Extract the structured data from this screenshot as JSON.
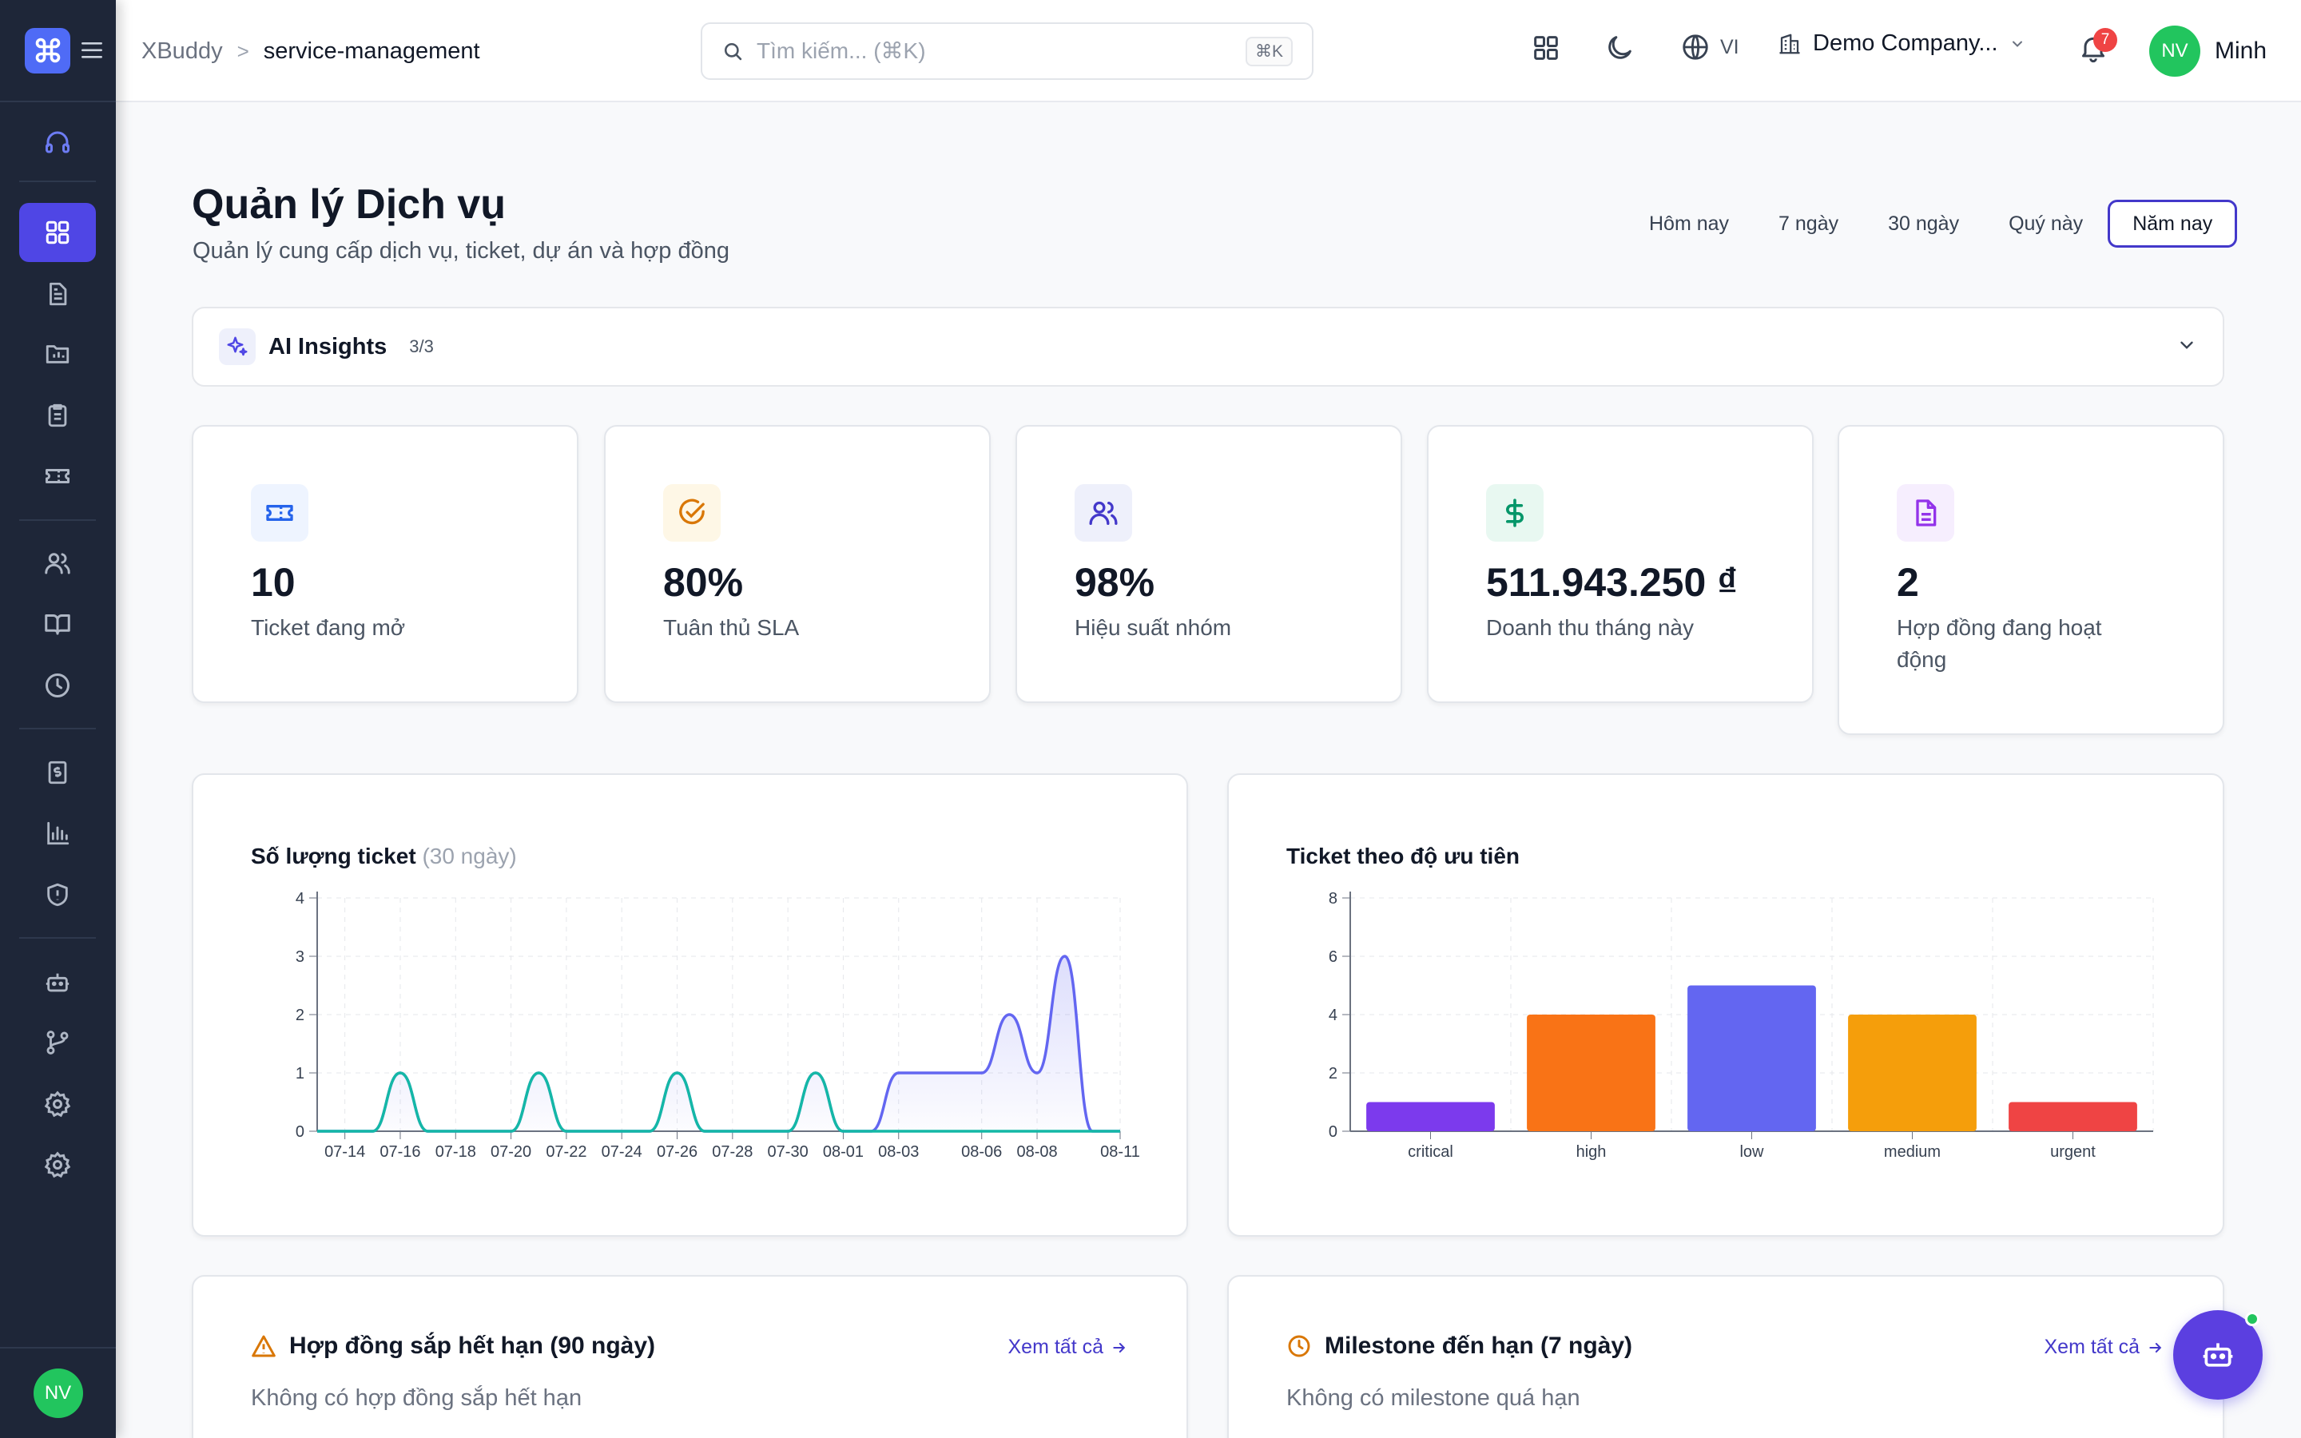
{
  "header": {
    "breadcrumb": {
      "root": "XBuddy",
      "separator": ">",
      "current": "service-management"
    },
    "search": {
      "placeholder": "Tìm kiếm... (⌘K)",
      "shortcut": "⌘K"
    },
    "language": "VI",
    "company": "Demo Company...",
    "notifications": {
      "count": "7"
    },
    "user": {
      "initials": "NV",
      "name": "Minh"
    }
  },
  "sidebar": {
    "items": [
      {
        "icon": "headset-icon",
        "active": false
      },
      {
        "icon": "dashboard-icon",
        "active": true
      },
      {
        "icon": "document-icon",
        "active": false
      },
      {
        "icon": "folder-icon",
        "active": false
      },
      {
        "icon": "clipboard-icon",
        "active": false
      },
      {
        "icon": "ticket-icon",
        "active": false
      },
      {
        "icon": "users-icon",
        "active": false
      },
      {
        "icon": "book-icon",
        "active": false
      },
      {
        "icon": "clock-icon",
        "active": false
      },
      {
        "icon": "invoice-icon",
        "active": false
      },
      {
        "icon": "bar-chart-icon",
        "active": false
      },
      {
        "icon": "shield-icon",
        "active": false
      },
      {
        "icon": "bot-icon",
        "active": false
      },
      {
        "icon": "git-branch-icon",
        "active": false
      },
      {
        "icon": "settings-icon",
        "active": false
      },
      {
        "icon": "settings-icon",
        "active": false
      }
    ],
    "user_initials": "NV"
  },
  "page": {
    "title": "Quản lý Dịch vụ",
    "subtitle": "Quản lý cung cấp dịch vụ, ticket, dự án và hợp đồng",
    "periods": [
      "Hôm nay",
      "7 ngày",
      "30 ngày",
      "Quý này",
      "Năm nay"
    ],
    "active_period": "Năm nay"
  },
  "insights": {
    "label": "AI Insights",
    "count": "3/3"
  },
  "stats": [
    {
      "value": "10",
      "label": "Ticket đang mở",
      "icon": "ticket-icon",
      "color": "#2563eb",
      "bg": "#eef4ff"
    },
    {
      "value": "80%",
      "label": "Tuân thủ SLA",
      "icon": "check-circle-icon",
      "color": "#d97706",
      "bg": "#fef7e6"
    },
    {
      "value": "98%",
      "label": "Hiệu suất nhóm",
      "icon": "users-icon",
      "color": "#4338ca",
      "bg": "#eef0fb"
    },
    {
      "value": "511.943.250 ₫",
      "label": "Doanh thu tháng này",
      "icon": "dollar-icon",
      "color": "#059669",
      "bg": "#e8f8f1"
    },
    {
      "value": "2",
      "label": "Hợp đồng đang hoạt động",
      "icon": "document-icon",
      "color": "#9333ea",
      "bg": "#f6eefe"
    }
  ],
  "ticket_chart": {
    "title": "Số lượng ticket",
    "title_suffix": "(30 ngày)"
  },
  "priority_chart": {
    "title": "Ticket theo độ ưu tiên"
  },
  "chart_data": [
    {
      "type": "area",
      "title": "Số lượng ticket (30 ngày)",
      "x": [
        "07-13",
        "07-14",
        "07-15",
        "07-16",
        "07-17",
        "07-18",
        "07-19",
        "07-20",
        "07-21",
        "07-22",
        "07-23",
        "07-24",
        "07-25",
        "07-26",
        "07-27",
        "07-28",
        "07-29",
        "07-30",
        "07-31",
        "08-01",
        "08-02",
        "08-03",
        "08-04",
        "08-05",
        "08-06",
        "08-07",
        "08-08",
        "08-09",
        "08-10",
        "08-11"
      ],
      "tick_labels": [
        "07-14",
        "07-16",
        "07-18",
        "07-20",
        "07-22",
        "07-24",
        "07-26",
        "07-28",
        "07-30",
        "08-01",
        "08-03",
        "08-06",
        "08-08",
        "08-11"
      ],
      "series": [
        {
          "values": [
            0,
            0,
            0,
            1,
            0,
            0,
            0,
            0,
            1,
            0,
            0,
            0,
            0,
            1,
            0,
            0,
            0,
            0,
            1,
            0,
            0,
            1,
            1,
            1,
            1,
            2,
            1,
            3,
            0,
            0
          ],
          "color": "#6366f1"
        },
        {
          "values": [
            0,
            0,
            0,
            1,
            0,
            0,
            0,
            0,
            1,
            0,
            0,
            0,
            0,
            1,
            0,
            0,
            0,
            0,
            1,
            0,
            0,
            0,
            0,
            0,
            0,
            0,
            0,
            0,
            0,
            0
          ],
          "color": "#14b8a6"
        }
      ],
      "ylim": [
        0,
        4
      ],
      "y_ticks": [
        0,
        1,
        2,
        3,
        4
      ],
      "grid": true
    },
    {
      "type": "bar",
      "title": "Ticket theo độ ưu tiên",
      "categories": [
        "critical",
        "high",
        "low",
        "medium",
        "urgent"
      ],
      "values": [
        1,
        4,
        5,
        4,
        1
      ],
      "colors": [
        "#7c3aed",
        "#f97316",
        "#6366f1",
        "#f59e0b",
        "#ef4444"
      ],
      "ylim": [
        0,
        8
      ],
      "y_ticks": [
        0,
        2,
        4,
        6,
        8
      ],
      "grid": true
    }
  ],
  "contracts": {
    "title": "Hợp đồng sắp hết hạn (90 ngày)",
    "see_all": "Xem tất cả",
    "empty": "Không có hợp đồng sắp hết hạn"
  },
  "milestones": {
    "title": "Milestone đến hạn (7 ngày)",
    "see_all": "Xem tất cả",
    "empty": "Không có milestone quá hạn"
  }
}
